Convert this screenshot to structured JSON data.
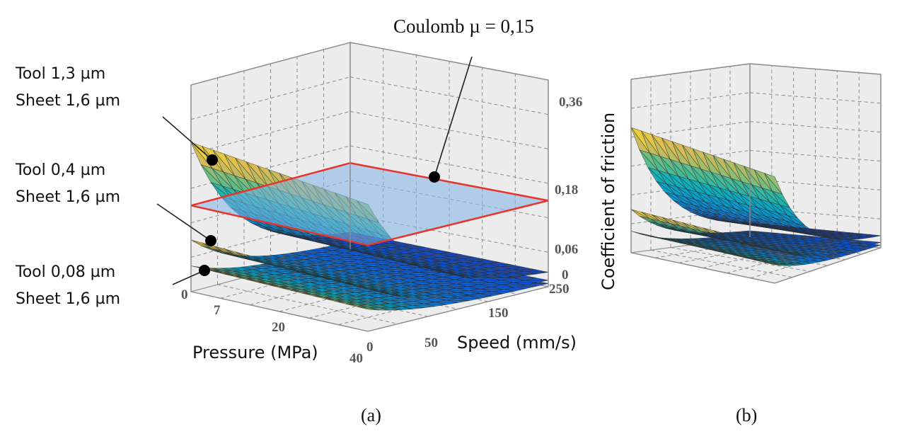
{
  "chart_data": [
    {
      "panel": "(a)",
      "type": "surface3d",
      "title": "",
      "xlabel": "Pressure (MPa)",
      "ylabel": "Speed (mm/s)",
      "zlabel": "Coefficient of friction",
      "x_ticks": [
        "0",
        "7",
        "20",
        "40"
      ],
      "y_ticks": [
        "0",
        "50",
        "150",
        "250"
      ],
      "z_ticks": [
        "0",
        "0,06",
        "0,18",
        "0,36"
      ],
      "xlim": [
        0,
        40
      ],
      "ylim": [
        0,
        250
      ],
      "zlim": [
        0,
        0.36
      ],
      "grid": true,
      "colormap": "parula",
      "series": [
        {
          "name": "Tool 1,3 µm / Sheet 1,6 µm",
          "z_at_speed0": 0.26,
          "z_at_speed_max": 0.02,
          "decay": "exponential"
        },
        {
          "name": "Tool 0,4 µm / Sheet 1,6 µm",
          "z_at_speed0": 0.09,
          "z_at_speed_max": 0.01,
          "decay": "exponential"
        },
        {
          "name": "Tool 0,08 µm / Sheet 1,6 µm",
          "z_at_speed0": 0.045,
          "z_at_speed_max": 0.005,
          "decay": "exponential"
        }
      ],
      "reference_plane": {
        "name": "Coulomb µ = 0,15",
        "z": 0.15,
        "color": "#7fb2e5",
        "edge_color": "#e8342c"
      },
      "annotations": [
        {
          "text_line1": "Tool 1,3 µm",
          "text_line2": "Sheet 1,6 µm",
          "target": "Tool 1,3 µm / Sheet 1,6 µm"
        },
        {
          "text_line1": "Tool 0,4 µm",
          "text_line2": "Sheet 1,6 µm",
          "target": "Tool 0,4 µm / Sheet 1,6 µm"
        },
        {
          "text_line1": "Tool 0,08 µm",
          "text_line2": "Sheet 1,6 µm",
          "target": "Tool 0,08 µm / Sheet 1,6 µm"
        },
        {
          "text": "Coulomb µ = 0,15",
          "target": "reference_plane"
        }
      ]
    },
    {
      "panel": "(b)",
      "type": "surface3d",
      "title": "",
      "grid": true,
      "colormap": "parula",
      "series": [
        {
          "name": "Tool 1,3 µm / Sheet 1,6 µm",
          "z_at_speed0": 0.26,
          "z_at_speed_max": 0.02
        },
        {
          "name": "Tool 0,4 µm / Sheet 1,6 µm",
          "z_at_speed0": 0.09,
          "z_at_speed_max": 0.01
        },
        {
          "name": "Tool 0,08 µm / Sheet 1,6 µm",
          "z_at_speed0": 0.045,
          "z_at_speed_max": 0.005
        }
      ]
    }
  ],
  "labels": {
    "coulomb": "Coulomb µ = 0,15",
    "tool1": "Tool 1,3 µm",
    "sheet1": "Sheet 1,6 µm",
    "tool2": "Tool 0,4 µm",
    "sheet2": "Sheet 1,6 µm",
    "tool3": "Tool 0,08 µm",
    "sheet3": "Sheet 1,6 µm",
    "panel_a": "(a)",
    "panel_b": "(b)"
  }
}
